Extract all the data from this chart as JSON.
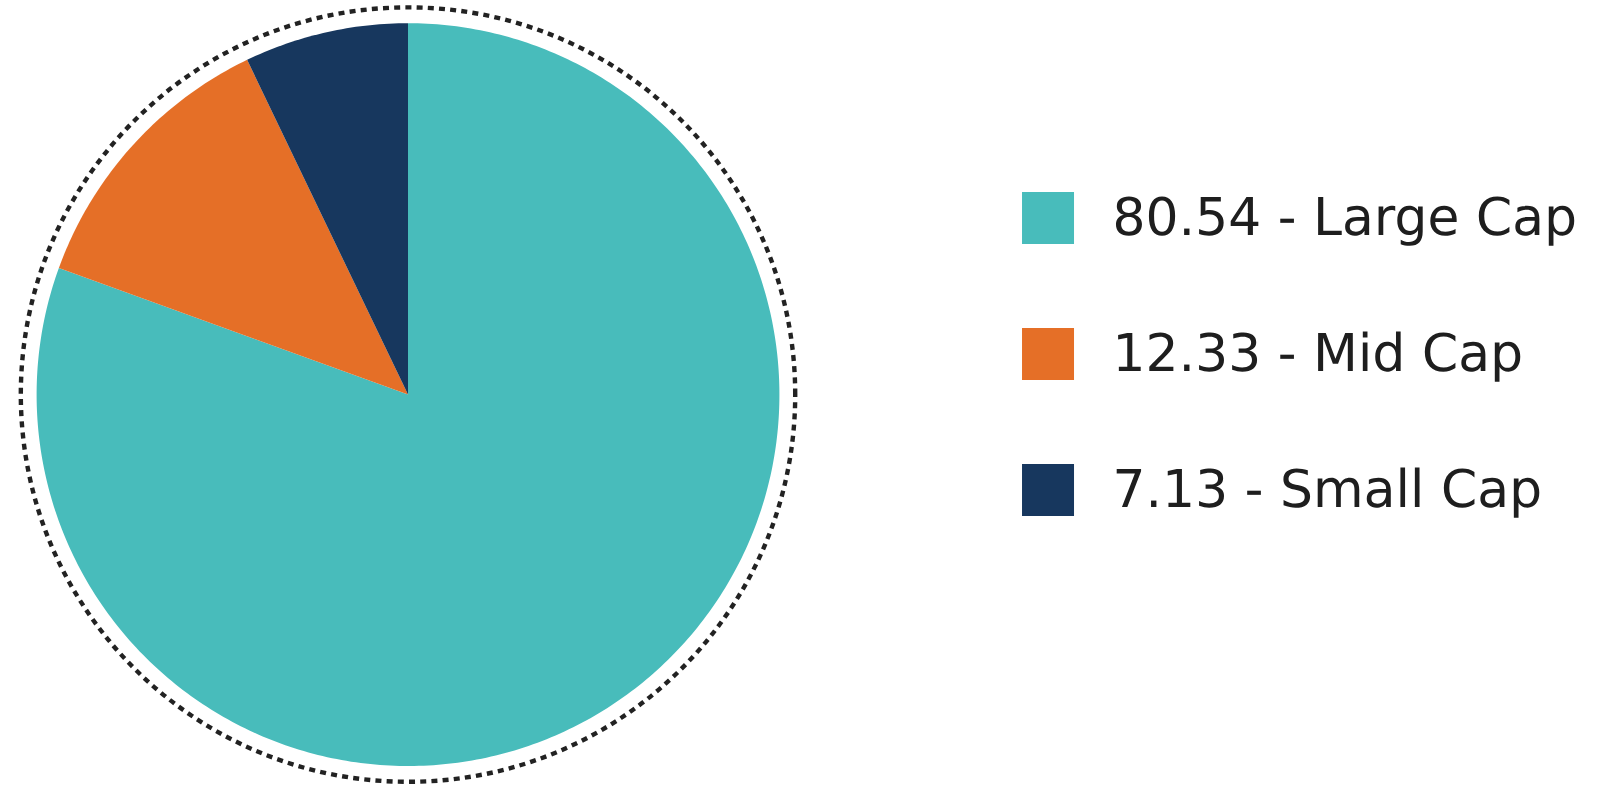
{
  "chart_data": {
    "type": "pie",
    "categories": [
      "80.54 - Large Cap",
      "12.33 - Mid Cap",
      "7.13 - Small Cap"
    ],
    "values": [
      80.54,
      12.33,
      7.13
    ],
    "colors": [
      "#48bcbb",
      "#e56f27",
      "#17375e"
    ],
    "legend": "right"
  }
}
